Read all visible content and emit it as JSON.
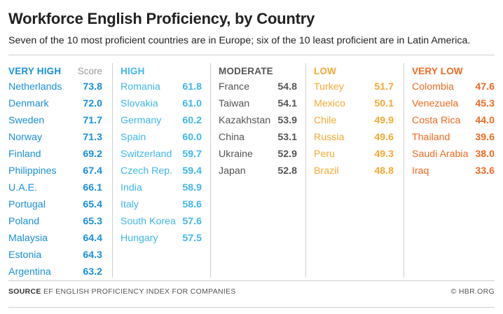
{
  "title": "Workforce English Proficiency, by Country",
  "subtitle": "Seven of the 10 most proficient countries are in Europe; six of the 10 least proficient are in Latin America.",
  "score_header": "Score",
  "footer": {
    "source_label": "SOURCE",
    "source_text": "EF ENGLISH PROFICIENCY INDEX FOR COMPANIES",
    "credit": "© HBR.ORG"
  },
  "colors": {
    "very_high": "#1a8fd8",
    "high": "#3fb6ec",
    "moderate": "#555555",
    "low": "#f7a833",
    "very_low": "#f06a22"
  },
  "chart_data": {
    "type": "table",
    "title": "Workforce English Proficiency, by Country",
    "subtitle": "Seven of the 10 most proficient countries are in Europe; six of the 10 least proficient are in Latin America.",
    "columns": [
      {
        "category": "VERY HIGH",
        "color": "#1a8fd8",
        "countries": [
          {
            "name": "Netherlands",
            "score": "73.8"
          },
          {
            "name": "Denmark",
            "score": "72.0"
          },
          {
            "name": "Sweden",
            "score": "71.7"
          },
          {
            "name": "Norway",
            "score": "71.3"
          },
          {
            "name": "Finland",
            "score": "69.2"
          },
          {
            "name": "Philippines",
            "score": "67.4"
          },
          {
            "name": "U.A.E.",
            "score": "66.1"
          },
          {
            "name": "Portugal",
            "score": "65.4"
          },
          {
            "name": "Poland",
            "score": "65.3"
          },
          {
            "name": "Malaysia",
            "score": "64.4"
          },
          {
            "name": "Estonia",
            "score": "64.3"
          },
          {
            "name": "Argentina",
            "score": "63.2"
          }
        ]
      },
      {
        "category": "HIGH",
        "color": "#3fb6ec",
        "countries": [
          {
            "name": "Romania",
            "score": "61.8"
          },
          {
            "name": "Slovakia",
            "score": "61.0"
          },
          {
            "name": "Germany",
            "score": "60.2"
          },
          {
            "name": "Spain",
            "score": "60.0"
          },
          {
            "name": "Switzerland",
            "score": "59.7"
          },
          {
            "name": "Czech Rep.",
            "score": "59.4"
          },
          {
            "name": "India",
            "score": "58.9"
          },
          {
            "name": "Italy",
            "score": "58.6"
          },
          {
            "name": "South Korea",
            "score": "57.6"
          },
          {
            "name": "Hungary",
            "score": "57.5"
          }
        ]
      },
      {
        "category": "MODERATE",
        "color": "#555555",
        "countries": [
          {
            "name": "France",
            "score": "54.8"
          },
          {
            "name": "Taiwan",
            "score": "54.1"
          },
          {
            "name": "Kazakhstan",
            "score": "53.9"
          },
          {
            "name": "China",
            "score": "53.1"
          },
          {
            "name": "Ukraine",
            "score": "52.9"
          },
          {
            "name": "Japan",
            "score": "52.8"
          }
        ]
      },
      {
        "category": "LOW",
        "color": "#f7a833",
        "countries": [
          {
            "name": "Turkey",
            "score": "51.7"
          },
          {
            "name": "Mexico",
            "score": "50.1"
          },
          {
            "name": "Chile",
            "score": "49.9"
          },
          {
            "name": "Russia",
            "score": "49.6"
          },
          {
            "name": "Peru",
            "score": "49.3"
          },
          {
            "name": "Brazil",
            "score": "48.8"
          }
        ]
      },
      {
        "category": "VERY LOW",
        "color": "#f06a22",
        "countries": [
          {
            "name": "Colombia",
            "score": "47.6"
          },
          {
            "name": "Venezuela",
            "score": "45.3"
          },
          {
            "name": "Costa Rica",
            "score": "44.0"
          },
          {
            "name": "Thailand",
            "score": "39.6"
          },
          {
            "name": "Saudi Arabia",
            "score": "38.0"
          },
          {
            "name": "Iraq",
            "score": "33.6"
          }
        ]
      }
    ]
  }
}
